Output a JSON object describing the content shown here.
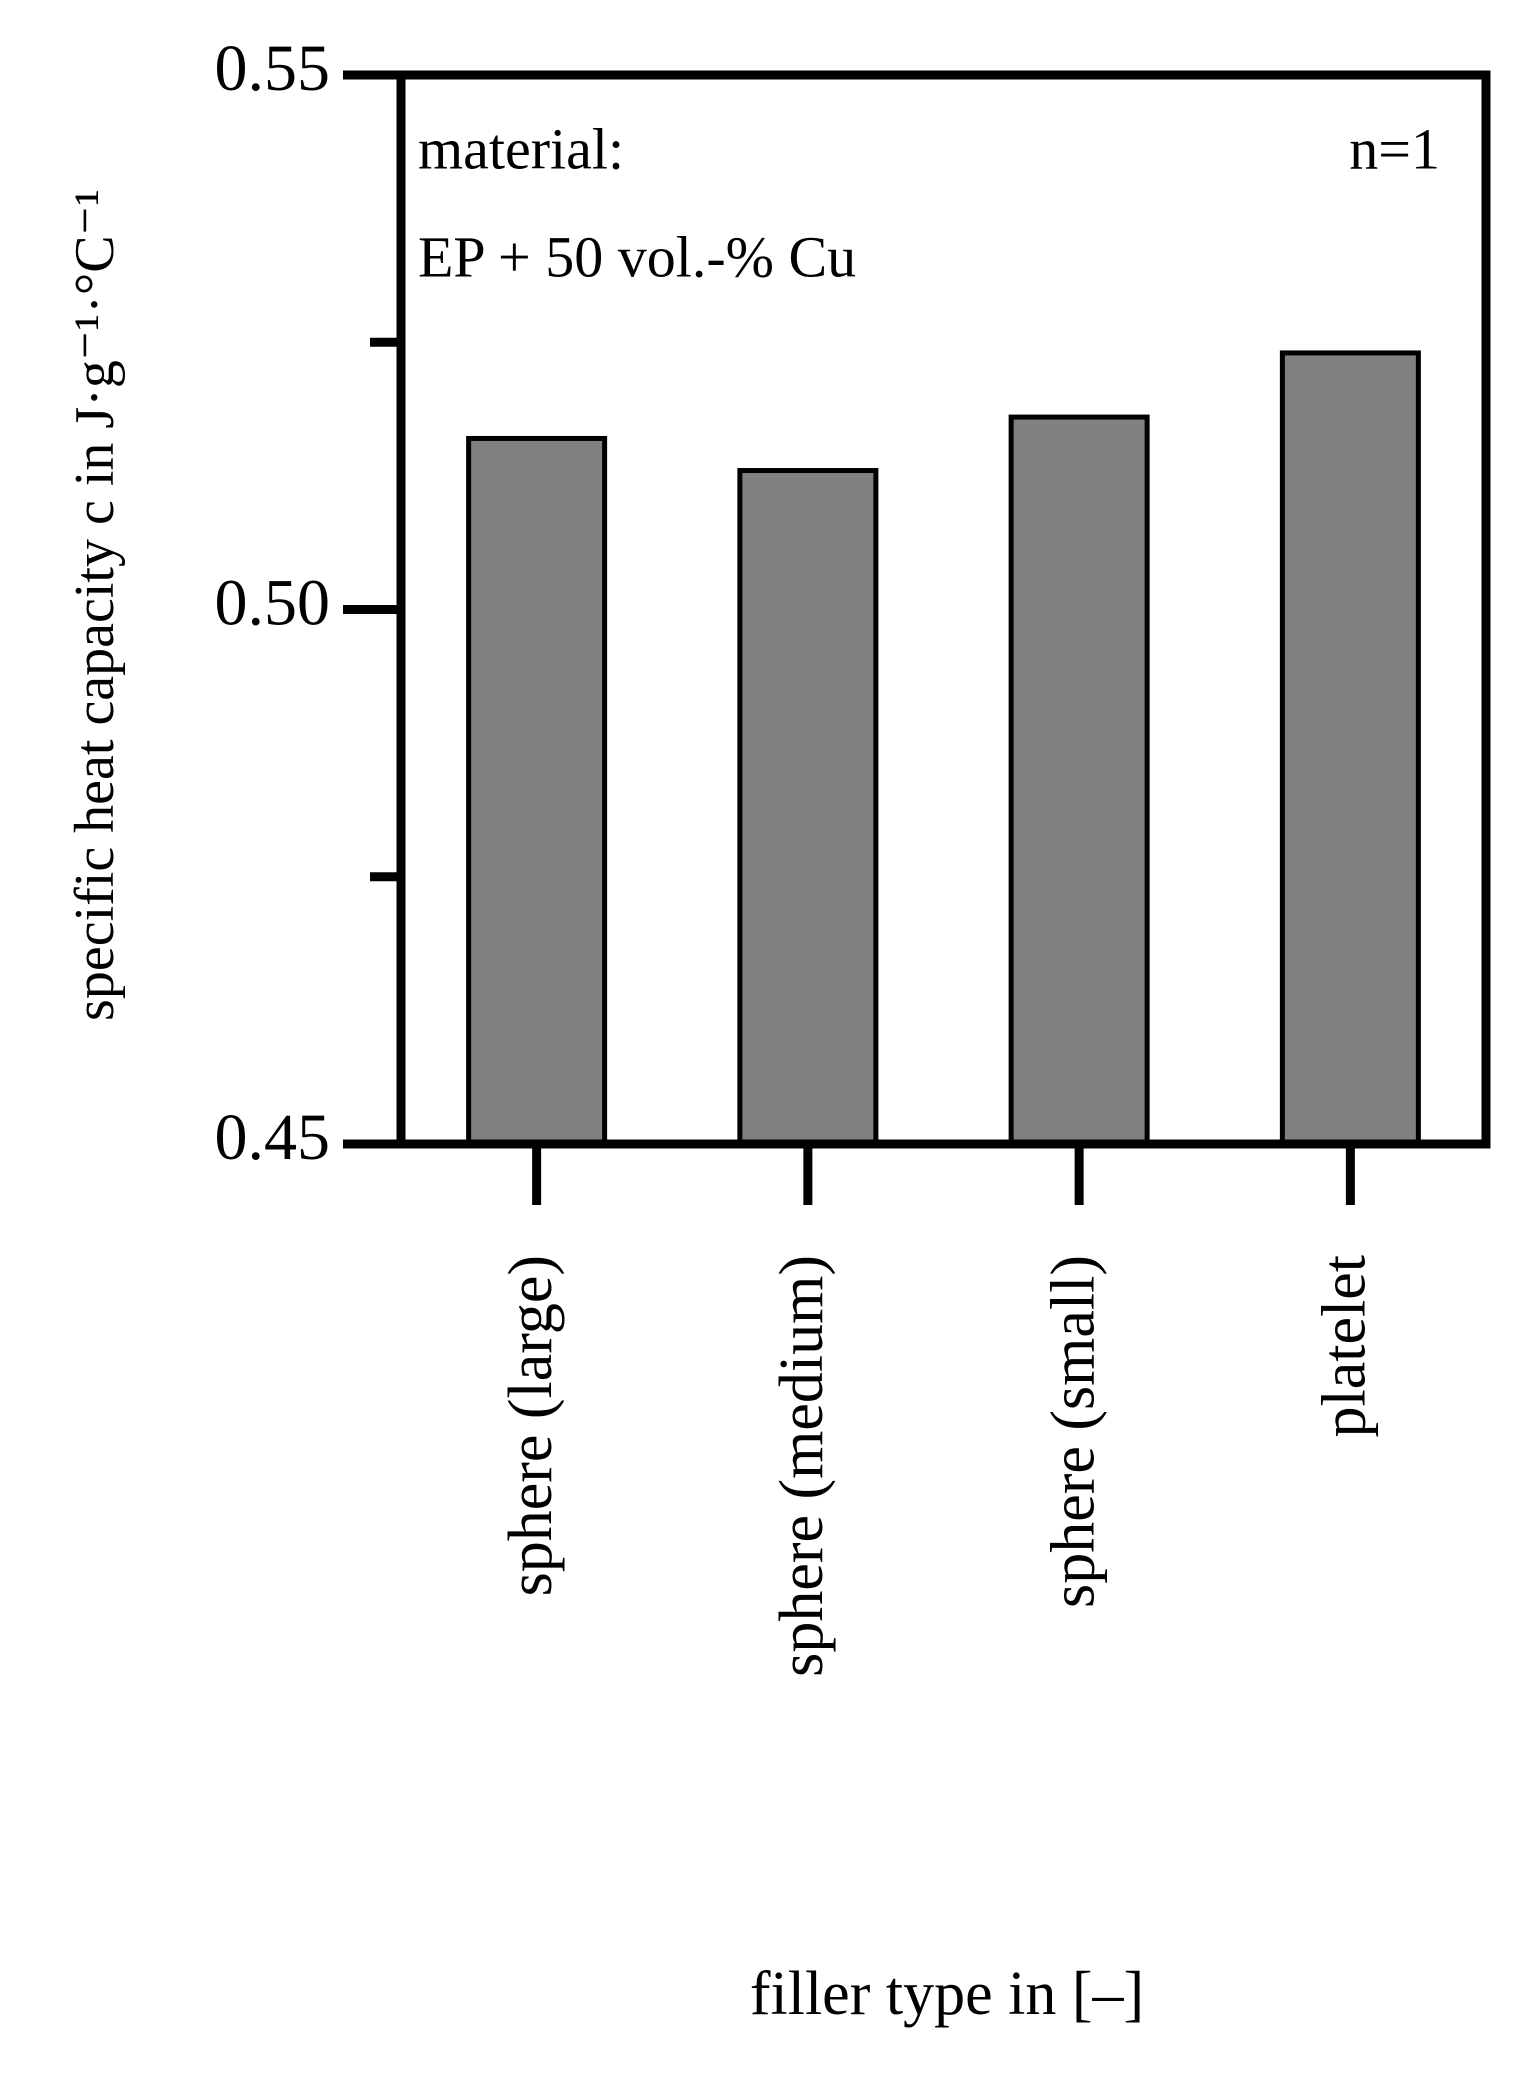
{
  "chart_data": {
    "type": "bar",
    "categories": [
      "sphere (large)",
      "sphere (medium)",
      "sphere (small)",
      "platelet"
    ],
    "values": [
      0.516,
      0.513,
      0.518,
      0.524
    ],
    "color": "#808080",
    "x_label": "filler type in [–]",
    "y_label": "specific heat capacity c in J·g⁻¹·°C⁻¹",
    "annotations": [
      "material:",
      "EP + 50 vol.-% Cu",
      "n=1"
    ],
    "ylim": [
      0.45,
      0.55
    ],
    "yticks": [
      0.45,
      {
        "value": 0.5,
        "label": "0.50"
      },
      0.55
    ],
    "yminor_ticks": [
      0.475,
      0.525
    ],
    "grid": false
  }
}
